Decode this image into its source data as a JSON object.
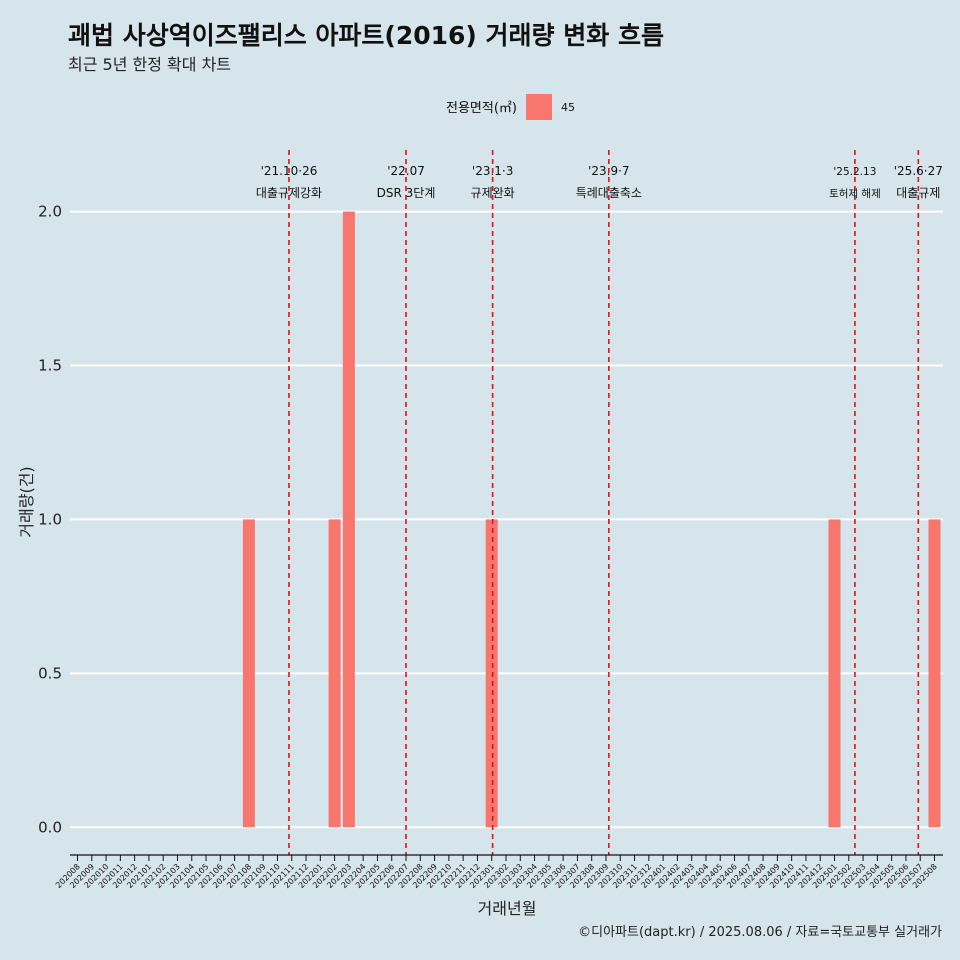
{
  "title": "괘법 사상역이즈팰리스 아파트(2016) 거래량 변화 흐름",
  "subtitle": "최근 5년 한정 확대 차트",
  "caption": "©디아파트(dapt.kr) / 2025.08.06 / 자료=국토교통부 실거래가",
  "colors": {
    "background": "#d6e4ec",
    "bar": "#f8766d",
    "event_line": "#e0130f",
    "grid": "#ffffff"
  },
  "chart_data": {
    "type": "bar",
    "xlabel": "거래년월",
    "ylabel": "거래량(건)",
    "ylim": [
      -0.09,
      2.2
    ],
    "yticks": [
      0.0,
      0.5,
      1.0,
      1.5,
      2.0
    ],
    "ytick_labels": [
      "0.0",
      "0.5",
      "1.0",
      "1.5",
      "2.0"
    ],
    "grid": true,
    "legend": {
      "title": "전용면적(㎡)",
      "position": "top",
      "entries": [
        {
          "label": "45",
          "color": "#f8766d"
        }
      ]
    },
    "categories": [
      "202008",
      "202009",
      "202010",
      "202011",
      "202012",
      "202101",
      "202102",
      "202103",
      "202104",
      "202105",
      "202106",
      "202107",
      "202108",
      "202109",
      "202110",
      "202111",
      "202112",
      "202201",
      "202202",
      "202203",
      "202204",
      "202205",
      "202206",
      "202207",
      "202208",
      "202209",
      "202210",
      "202211",
      "202212",
      "202301",
      "202302",
      "202303",
      "202304",
      "202305",
      "202306",
      "202307",
      "202308",
      "202309",
      "202310",
      "202311",
      "202312",
      "202401",
      "202402",
      "202403",
      "202404",
      "202405",
      "202406",
      "202407",
      "202408",
      "202409",
      "202410",
      "202411",
      "202412",
      "202501",
      "202502",
      "202503",
      "202504",
      "202505",
      "202506",
      "202507",
      "202508"
    ],
    "series": [
      {
        "name": "45",
        "values": [
          0,
          0,
          0,
          0,
          0,
          0,
          0,
          0,
          0,
          0,
          0,
          0,
          1,
          0,
          0,
          0,
          0,
          0,
          1,
          2,
          0,
          0,
          0,
          0,
          0,
          0,
          0,
          0,
          0,
          1,
          0,
          0,
          0,
          0,
          0,
          0,
          0,
          0,
          0,
          0,
          0,
          0,
          0,
          0,
          0,
          0,
          0,
          0,
          0,
          0,
          0,
          0,
          0,
          1,
          0,
          0,
          0,
          0,
          0,
          0,
          1
        ]
      }
    ],
    "events": [
      {
        "date": "2021-10-26",
        "line1": "'21.10·26",
        "line2": "대출규제강화",
        "size": "normal"
      },
      {
        "date": "2022-07-01",
        "line1": "'22.07",
        "line2": "DSR 3단계",
        "size": "normal"
      },
      {
        "date": "2023-01-03",
        "line1": "'23.1·3",
        "line2": "규제완화",
        "size": "normal"
      },
      {
        "date": "2023-09-07",
        "line1": "'23.9·7",
        "line2": "특례대출축소",
        "size": "normal"
      },
      {
        "date": "2025-02-13",
        "line1": "'25.2.13",
        "line2": "토허제 해제",
        "size": "small"
      },
      {
        "date": "2025-06-27",
        "line1": "'25.6·27",
        "line2": "대출규제",
        "size": "normal"
      }
    ]
  }
}
